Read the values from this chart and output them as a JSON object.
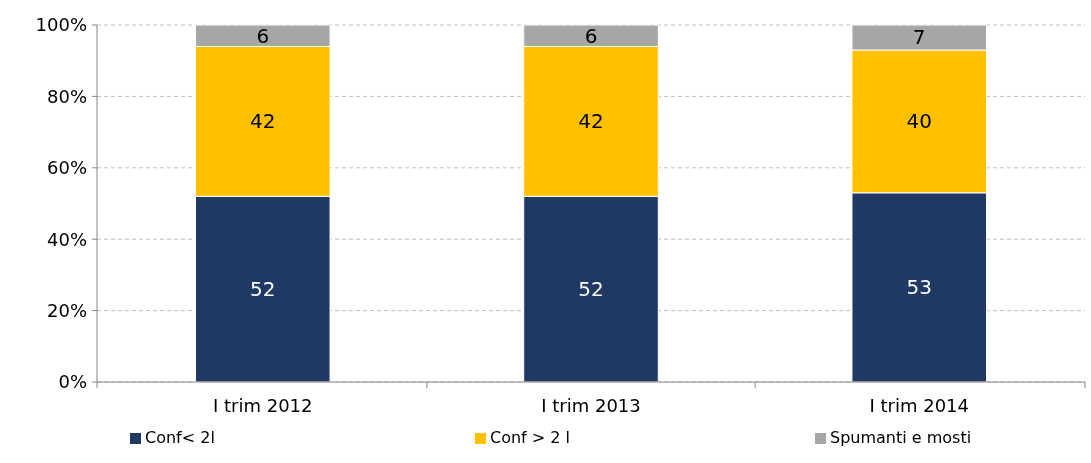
{
  "chart_data": {
    "type": "bar",
    "stacked": true,
    "categories": [
      "I trim 2012",
      "I trim 2013",
      "I trim 2014"
    ],
    "series": [
      {
        "name": "Conf< 2l",
        "color": "#1f3864",
        "values": [
          52,
          52,
          53
        ]
      },
      {
        "name": "Conf > 2 l",
        "color": "#ffc000",
        "values": [
          42,
          42,
          40
        ]
      },
      {
        "name": "Spumanti e mosti",
        "color": "#a6a6a6",
        "values": [
          6,
          6,
          7
        ]
      }
    ],
    "ylim": [
      0,
      100
    ],
    "yticks": [
      {
        "value": 0,
        "label": "0%"
      },
      {
        "value": 20,
        "label": "20%"
      },
      {
        "value": 40,
        "label": "40%"
      },
      {
        "value": 60,
        "label": "60%"
      },
      {
        "value": 80,
        "label": "80%"
      },
      {
        "value": 100,
        "label": "100%"
      }
    ],
    "grid": "y",
    "legend": "bottom",
    "data_labels": true
  }
}
